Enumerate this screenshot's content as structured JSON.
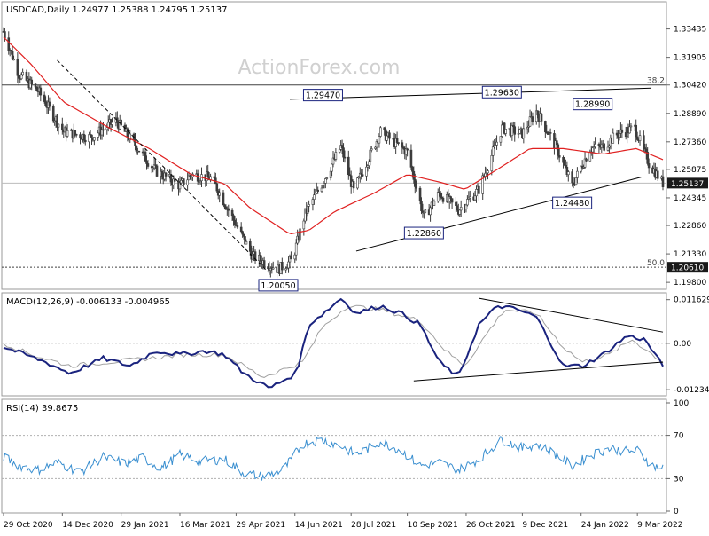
{
  "watermark": "ActionForex.com",
  "colors": {
    "bull": "#3c3c3c",
    "bear": "#3c3c3c",
    "ma": "#e02020",
    "macd": "#1a237e",
    "signal": "#a0a0a0",
    "rsi": "#3a8fd0",
    "trendline": "#000000",
    "hline": "#404040",
    "label_border": "#1a237e",
    "last_price_bg": "#1a1a1a",
    "last_price_fg": "#ffffff"
  },
  "chart_data": [
    {
      "id": "price",
      "type": "candlestick",
      "title": "USDCAD,Daily  1.24977 1.25388 1.24795 1.25137",
      "y_ticks": [
        "1.33435",
        "1.31905",
        "1.30420",
        "1.28890",
        "1.27360",
        "1.25875",
        "1.24345",
        "1.22860",
        "1.21330",
        "1.19800"
      ],
      "ylim": [
        1.1952,
        1.348
      ],
      "x_ticks": [
        "29 Oct 2020",
        "14 Dec 2020",
        "29 Jan 2021",
        "16 Mar 2021",
        "29 Apr 2021",
        "14 Jun 2021",
        "28 Jul 2021",
        "10 Sep 2021",
        "26 Oct 2021",
        "9 Dec 2021",
        "24 Jan 2022",
        "9 Mar 2022"
      ],
      "current_price": "1.25137",
      "fib_levels": [
        {
          "label": "38.2",
          "value": 1.3042
        },
        {
          "label": "50.0",
          "value": 1.2061,
          "tag": "1.20610"
        }
      ],
      "annotations": [
        {
          "text": "1.20050",
          "value": 1.2005,
          "date": "2021-06-01"
        },
        {
          "text": "1.29470",
          "value": 1.2947,
          "date": "2021-07-06"
        },
        {
          "text": "1.29630",
          "value": 1.2963,
          "date": "2021-11-23"
        },
        {
          "text": "1.28990",
          "value": 1.2899,
          "date": "2022-02-02"
        },
        {
          "text": "1.22860",
          "value": 1.2286,
          "date": "2021-09-23"
        },
        {
          "text": "1.24480",
          "value": 1.2448,
          "date": "2022-01-17"
        }
      ],
      "trendlines": [
        {
          "from": [
            "2021-06-10",
            1.2965
          ],
          "to": [
            "2022-03-20",
            1.3025
          ]
        },
        {
          "from": [
            "2021-08-01",
            1.2148
          ],
          "to": [
            "2022-03-12",
            1.2546
          ]
        },
        {
          "from": [
            "2020-12-10",
            1.3175
          ],
          "to": [
            "2021-05-25",
            1.203
          ]
        }
      ],
      "ma_name": "",
      "ohlc_anchors": [
        [
          "2020-10-29",
          1.333
        ],
        [
          "2020-11-10",
          1.31
        ],
        [
          "2020-11-25",
          1.301
        ],
        [
          "2020-12-15",
          1.279
        ],
        [
          "2021-01-05",
          1.276
        ],
        [
          "2021-01-25",
          1.285
        ],
        [
          "2021-02-10",
          1.271
        ],
        [
          "2021-02-25",
          1.258
        ],
        [
          "2021-03-16",
          1.25
        ],
        [
          "2021-03-25",
          1.256
        ],
        [
          "2021-04-10",
          1.254
        ],
        [
          "2021-04-29",
          1.229
        ],
        [
          "2021-05-12",
          1.212
        ],
        [
          "2021-06-01",
          1.205
        ],
        [
          "2021-06-12",
          1.21
        ],
        [
          "2021-06-22",
          1.235
        ],
        [
          "2021-07-06",
          1.252
        ],
        [
          "2021-07-20",
          1.271
        ],
        [
          "2021-07-30",
          1.247
        ],
        [
          "2021-08-20",
          1.279
        ],
        [
          "2021-09-10",
          1.268
        ],
        [
          "2021-09-23",
          1.233
        ],
        [
          "2021-10-05",
          1.246
        ],
        [
          "2021-10-20",
          1.237
        ],
        [
          "2021-11-05",
          1.248
        ],
        [
          "2021-11-23",
          1.281
        ],
        [
          "2021-12-09",
          1.278
        ],
        [
          "2021-12-20",
          1.29
        ],
        [
          "2022-01-05",
          1.27
        ],
        [
          "2022-01-17",
          1.25
        ],
        [
          "2022-01-31",
          1.27
        ],
        [
          "2022-02-10",
          1.271
        ],
        [
          "2022-02-22",
          1.278
        ],
        [
          "2022-03-07",
          1.281
        ],
        [
          "2022-03-18",
          1.262
        ],
        [
          "2022-03-29",
          1.2514
        ]
      ],
      "ma_anchors": [
        [
          "2020-10-29",
          1.33
        ],
        [
          "2020-11-20",
          1.315
        ],
        [
          "2020-12-15",
          1.295
        ],
        [
          "2021-01-20",
          1.281
        ],
        [
          "2021-02-20",
          1.27
        ],
        [
          "2021-03-25",
          1.256
        ],
        [
          "2021-04-20",
          1.251
        ],
        [
          "2021-05-10",
          1.238
        ],
        [
          "2021-06-10",
          1.224
        ],
        [
          "2021-06-25",
          1.226
        ],
        [
          "2021-07-15",
          1.236
        ],
        [
          "2021-08-15",
          1.246
        ],
        [
          "2021-09-10",
          1.256
        ],
        [
          "2021-10-05",
          1.252
        ],
        [
          "2021-10-25",
          1.248
        ],
        [
          "2021-11-20",
          1.259
        ],
        [
          "2021-12-15",
          1.27
        ],
        [
          "2022-01-10",
          1.27
        ],
        [
          "2022-02-10",
          1.267
        ],
        [
          "2022-03-08",
          1.27
        ],
        [
          "2022-03-29",
          1.264
        ]
      ]
    },
    {
      "id": "macd",
      "type": "line",
      "title": "MACD(12,26,9) -0.006133 -0.004965",
      "y_ticks": [
        "0.011629",
        "0.00",
        "-0.012348"
      ],
      "ylim": [
        -0.0135,
        0.0125
      ],
      "zero_line": 0,
      "series": [
        {
          "role": "macd",
          "values": [
            [
              "2020-10-29",
              -0.001
            ],
            [
              "2020-11-15",
              -0.003
            ],
            [
              "2020-12-01",
              -0.005
            ],
            [
              "2020-12-20",
              -0.008
            ],
            [
              "2021-01-15",
              -0.004
            ],
            [
              "2021-02-05",
              -0.006
            ],
            [
              "2021-02-25",
              -0.002
            ],
            [
              "2021-03-16",
              -0.003
            ],
            [
              "2021-04-05",
              -0.002
            ],
            [
              "2021-04-20",
              -0.003
            ],
            [
              "2021-05-05",
              -0.008
            ],
            [
              "2021-05-25",
              -0.012
            ],
            [
              "2021-06-15",
              -0.008
            ],
            [
              "2021-06-25",
              0.005
            ],
            [
              "2021-07-10",
              0.009
            ],
            [
              "2021-07-20",
              0.012
            ],
            [
              "2021-08-01",
              0.008
            ],
            [
              "2021-08-20",
              0.01
            ],
            [
              "2021-09-05",
              0.008
            ],
            [
              "2021-09-20",
              0.005
            ],
            [
              "2021-10-05",
              -0.005
            ],
            [
              "2021-10-20",
              -0.009
            ],
            [
              "2021-11-05",
              0.005
            ],
            [
              "2021-11-20",
              0.01
            ],
            [
              "2021-12-05",
              0.009
            ],
            [
              "2021-12-20",
              0.007
            ],
            [
              "2022-01-10",
              -0.006
            ],
            [
              "2022-01-25",
              -0.006
            ],
            [
              "2022-02-10",
              -0.003
            ],
            [
              "2022-03-01",
              0.002
            ],
            [
              "2022-03-15",
              0.001
            ],
            [
              "2022-03-29",
              -0.0061
            ]
          ]
        },
        {
          "role": "signal",
          "values": [
            [
              "2020-10-29",
              0.0
            ],
            [
              "2020-11-20",
              -0.003
            ],
            [
              "2020-12-20",
              -0.006
            ],
            [
              "2021-01-20",
              -0.005
            ],
            [
              "2021-02-20",
              -0.004
            ],
            [
              "2021-03-20",
              -0.003
            ],
            [
              "2021-04-20",
              -0.003
            ],
            [
              "2021-05-20",
              -0.009
            ],
            [
              "2021-06-20",
              -0.005
            ],
            [
              "2021-07-05",
              0.004
            ],
            [
              "2021-07-25",
              0.01
            ],
            [
              "2021-08-20",
              0.009
            ],
            [
              "2021-09-20",
              0.006
            ],
            [
              "2021-10-10",
              -0.002
            ],
            [
              "2021-10-25",
              -0.006
            ],
            [
              "2021-11-10",
              0.002
            ],
            [
              "2021-11-25",
              0.009
            ],
            [
              "2021-12-20",
              0.008
            ],
            [
              "2022-01-10",
              -0.001
            ],
            [
              "2022-01-25",
              -0.005
            ],
            [
              "2022-02-15",
              -0.003
            ],
            [
              "2022-03-05",
              0.001
            ],
            [
              "2022-03-29",
              -0.005
            ]
          ]
        }
      ],
      "trendlines": [
        {
          "from": [
            "2021-11-05",
            0.012
          ],
          "to": [
            "2022-03-29",
            0.003
          ]
        },
        {
          "from": [
            "2021-09-15",
            -0.01
          ],
          "to": [
            "2022-03-29",
            -0.005
          ]
        }
      ]
    },
    {
      "id": "rsi",
      "type": "line",
      "title": "RSI(14) 39.8675",
      "y_ticks": [
        "100",
        "70",
        "30",
        "0"
      ],
      "ylim": [
        0,
        100
      ],
      "levels": [
        70,
        30
      ],
      "series": [
        {
          "role": "rsi",
          "values": [
            [
              "2020-10-29",
              50
            ],
            [
              "2020-11-10",
              42
            ],
            [
              "2020-11-25",
              38
            ],
            [
              "2020-12-10",
              45
            ],
            [
              "2020-12-28",
              36
            ],
            [
              "2021-01-15",
              50
            ],
            [
              "2021-02-01",
              44
            ],
            [
              "2021-02-15",
              49
            ],
            [
              "2021-03-01",
              40
            ],
            [
              "2021-03-16",
              52
            ],
            [
              "2021-04-01",
              46
            ],
            [
              "2021-04-20",
              48
            ],
            [
              "2021-05-05",
              35
            ],
            [
              "2021-05-20",
              32
            ],
            [
              "2021-06-05",
              38
            ],
            [
              "2021-06-20",
              62
            ],
            [
              "2021-07-05",
              66
            ],
            [
              "2021-07-20",
              60
            ],
            [
              "2021-08-01",
              52
            ],
            [
              "2021-08-20",
              64
            ],
            [
              "2021-09-05",
              56
            ],
            [
              "2021-09-20",
              42
            ],
            [
              "2021-10-05",
              45
            ],
            [
              "2021-10-20",
              38
            ],
            [
              "2021-11-05",
              48
            ],
            [
              "2021-11-23",
              66
            ],
            [
              "2021-12-09",
              58
            ],
            [
              "2021-12-20",
              62
            ],
            [
              "2022-01-05",
              52
            ],
            [
              "2022-01-17",
              42
            ],
            [
              "2022-02-01",
              52
            ],
            [
              "2022-02-15",
              58
            ],
            [
              "2022-03-01",
              55
            ],
            [
              "2022-03-10",
              56
            ],
            [
              "2022-03-20",
              42
            ],
            [
              "2022-03-29",
              39.87
            ]
          ]
        }
      ]
    }
  ]
}
